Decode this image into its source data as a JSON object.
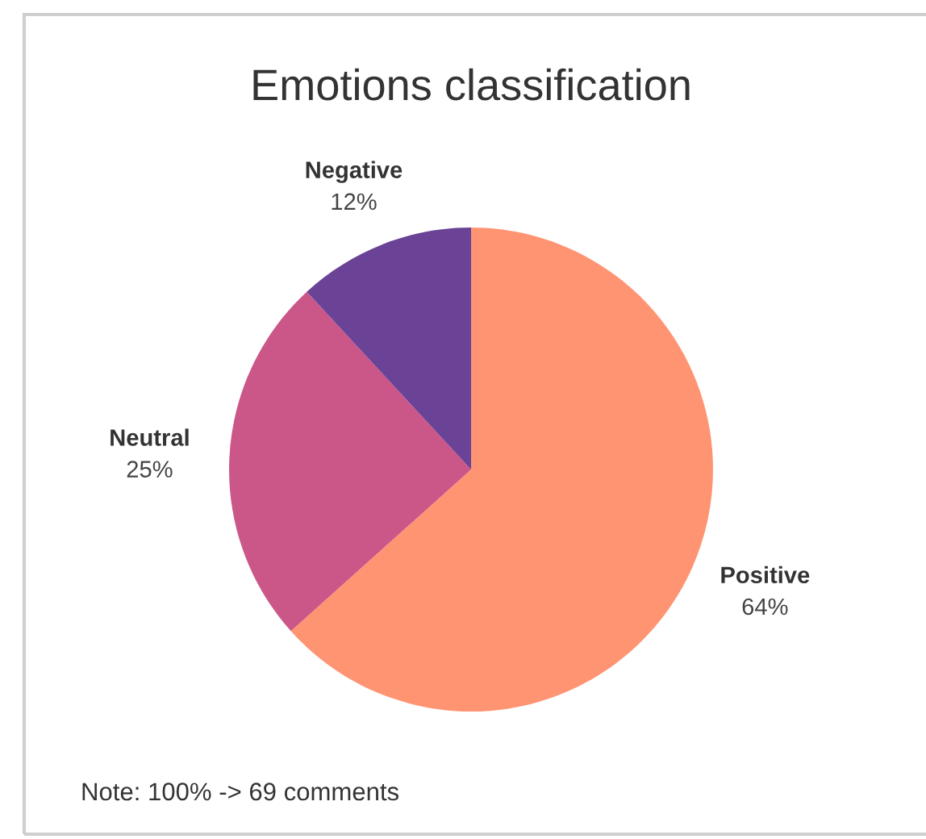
{
  "chart_data": {
    "type": "pie",
    "title": "Emotions classification",
    "categories": [
      "Positive",
      "Neutral",
      "Negative"
    ],
    "values": [
      64,
      25,
      12
    ],
    "colors": [
      "#ff9473",
      "#cb5688",
      "#6a4396"
    ],
    "value_labels": [
      "64%",
      "25%",
      "12%"
    ],
    "annotations": [
      "Note: 100% -> 69 comments"
    ]
  }
}
